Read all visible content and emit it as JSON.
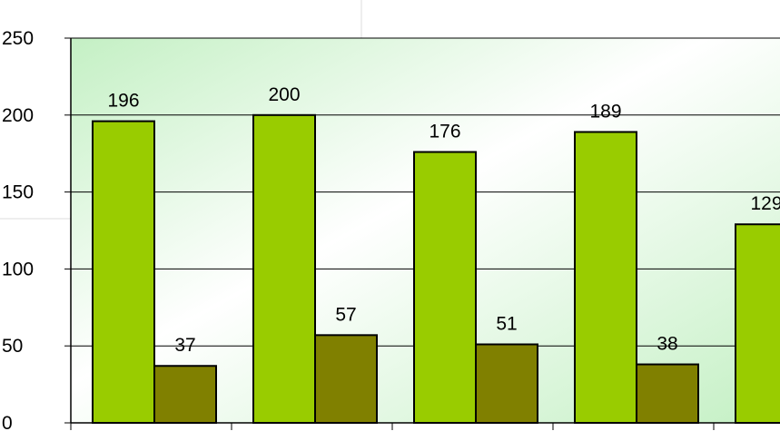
{
  "chart_data": {
    "type": "bar",
    "title": "",
    "xlabel": "",
    "ylabel": "",
    "categories": [
      "",
      "",
      "",
      "",
      ""
    ],
    "series": [
      {
        "values": [
          196,
          200,
          176,
          189,
          129
        ],
        "color": "#99cc00"
      },
      {
        "values": [
          37,
          57,
          51,
          38,
          null
        ],
        "color": "#808000"
      }
    ],
    "data_labels": [
      [
        "196",
        "200",
        "176",
        "189",
        "129"
      ],
      [
        "37",
        "57",
        "51",
        "38",
        ""
      ]
    ],
    "ylim": [
      0,
      250
    ],
    "yticks": [
      0,
      50,
      100,
      150,
      200,
      250
    ],
    "ytick_labels": [
      "0",
      "50",
      "100",
      "150",
      "200",
      "250"
    ],
    "grid": true,
    "legend": "none",
    "plot_background": "gradient light-green to white",
    "colors": {
      "bar_border": "#000000",
      "gridline": "#000000",
      "plot_gradient_edge": "#c8f5c8",
      "plot_gradient_center": "#ffffff"
    }
  }
}
